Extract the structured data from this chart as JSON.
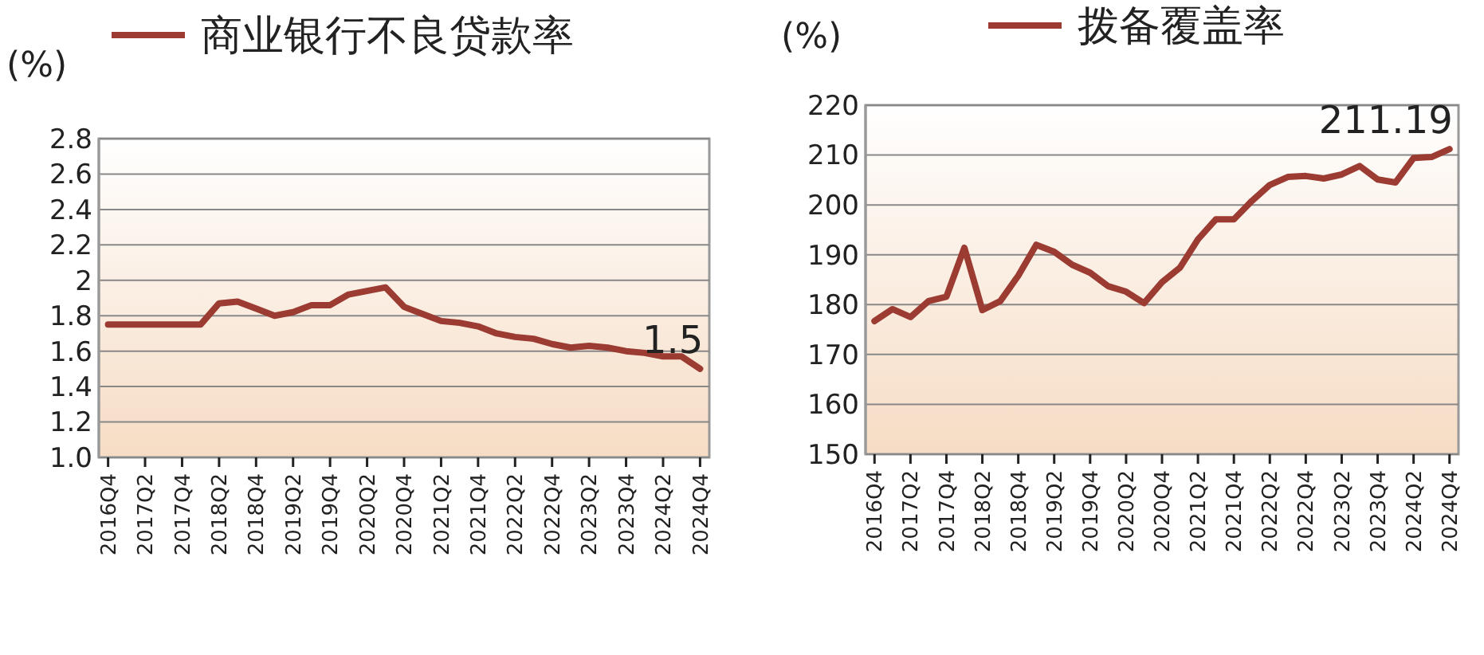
{
  "chart_data": [
    {
      "type": "line",
      "ylabel": "(%)",
      "categories": [
        "2016Q4",
        null,
        "2017Q2",
        null,
        "2017Q4",
        null,
        "2018Q2",
        null,
        "2018Q4",
        null,
        "2019Q2",
        null,
        "2019Q4",
        null,
        "2020Q2",
        null,
        "2020Q4",
        null,
        "2021Q2",
        null,
        "2021Q4",
        null,
        "2022Q2",
        null,
        "2022Q4",
        null,
        "2023Q2",
        null,
        "2023Q4",
        null,
        "2024Q2",
        null,
        "2024Q4"
      ],
      "series": [
        {
          "name": "商业银行不良贷款率",
          "color": "#9b3b32",
          "values": [
            1.75,
            1.75,
            1.75,
            1.75,
            1.75,
            1.75,
            1.87,
            1.88,
            1.84,
            1.8,
            1.82,
            1.86,
            1.86,
            1.92,
            1.94,
            1.96,
            1.85,
            1.81,
            1.77,
            1.76,
            1.74,
            1.7,
            1.68,
            1.67,
            1.64,
            1.62,
            1.63,
            1.62,
            1.6,
            1.59,
            1.57,
            1.57,
            1.5
          ]
        }
      ],
      "ylim": [
        1.0,
        2.8
      ],
      "yticks": [
        {
          "value": 1.0,
          "label": "1.0"
        },
        1.2,
        1.4,
        1.6,
        1.8,
        2,
        2.2,
        2.4,
        2.6,
        2.8
      ],
      "grid": "y",
      "legend": "top",
      "annotations": [
        {
          "text": "1.5",
          "x": "2024Q4",
          "y": 1.5
        }
      ]
    },
    {
      "type": "line",
      "ylabel": "(%)",
      "categories": [
        "2016Q4",
        null,
        "2017Q2",
        null,
        "2017Q4",
        null,
        "2018Q2",
        null,
        "2018Q4",
        null,
        "2019Q2",
        null,
        "2019Q4",
        null,
        "2020Q2",
        null,
        "2020Q4",
        null,
        "2021Q2",
        null,
        "2021Q4",
        null,
        "2022Q2",
        null,
        "2022Q4",
        null,
        "2023Q2",
        null,
        "2023Q4",
        null,
        "2024Q2",
        null,
        "2024Q4"
      ],
      "series": [
        {
          "name": "拨备覆盖率",
          "color": "#9b3b32",
          "values": [
            176.7,
            179.1,
            177.5,
            180.7,
            181.6,
            191.4,
            178.9,
            180.7,
            185.8,
            192.0,
            190.6,
            188.0,
            186.4,
            183.7,
            182.6,
            180.3,
            184.5,
            187.4,
            193.1,
            197.1,
            197.1,
            200.8,
            204.0,
            205.6,
            205.8,
            205.3,
            206.1,
            207.8,
            205.1,
            204.5,
            209.4,
            209.6,
            211.19
          ]
        }
      ],
      "ylim": [
        150,
        220
      ],
      "yticks": [
        150,
        160,
        170,
        180,
        190,
        200,
        210,
        220
      ],
      "grid": "y",
      "legend": "top",
      "annotations": [
        {
          "text": "211.19",
          "x": "2024Q4",
          "y": 211.19
        }
      ]
    }
  ]
}
